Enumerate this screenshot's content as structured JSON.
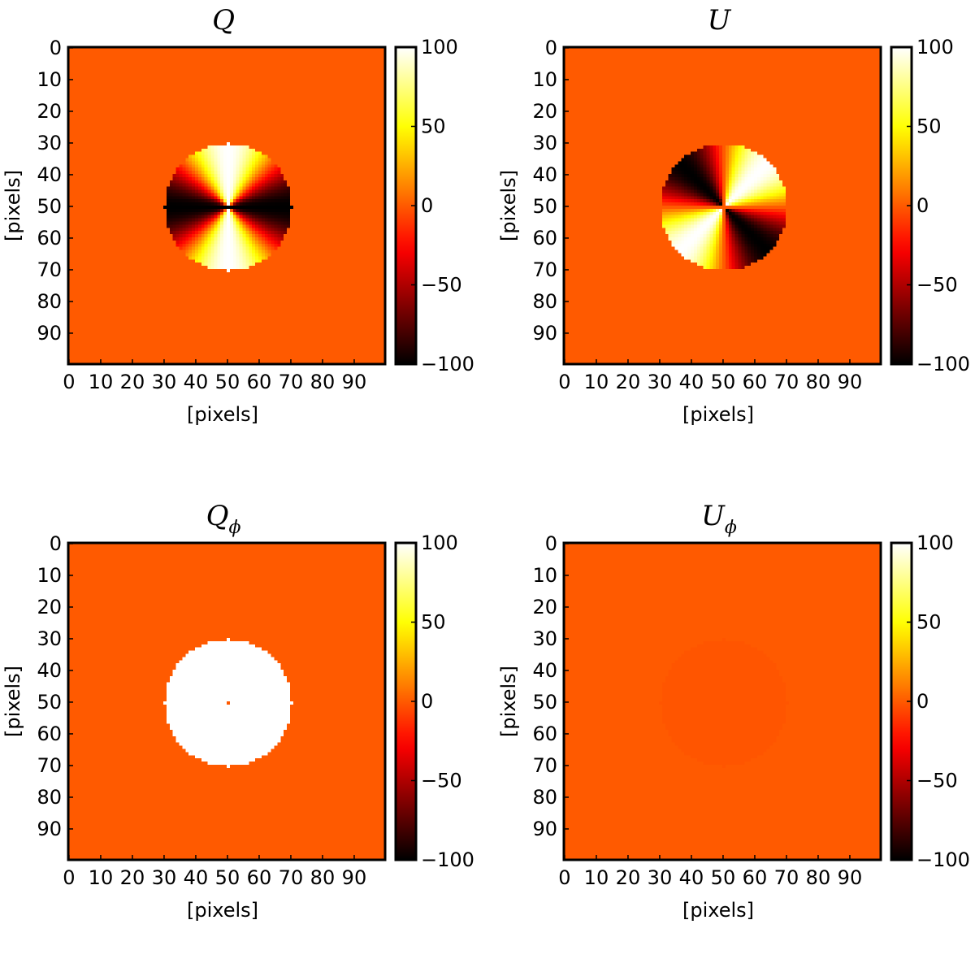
{
  "chart_data": [
    {
      "type": "heatmap",
      "title": "Q",
      "title_subscript": "",
      "pattern": "Q",
      "xlabel": "[pixels]",
      "ylabel": "[pixels]",
      "xlim": [
        0,
        99
      ],
      "ylim": [
        99,
        0
      ],
      "xticks": [
        "0",
        "10",
        "20",
        "30",
        "40",
        "50",
        "60",
        "70",
        "80",
        "90"
      ],
      "yticks": [
        "0",
        "10",
        "20",
        "30",
        "40",
        "50",
        "60",
        "70",
        "80",
        "90"
      ],
      "colorbar": {
        "min": -100,
        "max": 100,
        "ticks": [
          "100",
          "50",
          "0",
          "−50",
          "−100"
        ],
        "colormap": "hot"
      },
      "disk": {
        "center": [
          50,
          50
        ],
        "radius": 20,
        "amplitude": 100
      },
      "background_value": 0
    },
    {
      "type": "heatmap",
      "title": "U",
      "title_subscript": "",
      "pattern": "U",
      "xlabel": "[pixels]",
      "ylabel": "[pixels]",
      "xlim": [
        0,
        99
      ],
      "ylim": [
        99,
        0
      ],
      "xticks": [
        "0",
        "10",
        "20",
        "30",
        "40",
        "50",
        "60",
        "70",
        "80",
        "90"
      ],
      "yticks": [
        "0",
        "10",
        "20",
        "30",
        "40",
        "50",
        "60",
        "70",
        "80",
        "90"
      ],
      "colorbar": {
        "min": -100,
        "max": 100,
        "ticks": [
          "100",
          "50",
          "0",
          "−50",
          "−100"
        ],
        "colormap": "hot"
      },
      "disk": {
        "center": [
          50,
          50
        ],
        "radius": 20,
        "amplitude": 100
      },
      "background_value": 0
    },
    {
      "type": "heatmap",
      "title": "Q",
      "title_subscript": "ϕ",
      "pattern": "Qphi",
      "xlabel": "[pixels]",
      "ylabel": "[pixels]",
      "xlim": [
        0,
        99
      ],
      "ylim": [
        99,
        0
      ],
      "xticks": [
        "0",
        "10",
        "20",
        "30",
        "40",
        "50",
        "60",
        "70",
        "80",
        "90"
      ],
      "yticks": [
        "0",
        "10",
        "20",
        "30",
        "40",
        "50",
        "60",
        "70",
        "80",
        "90"
      ],
      "colorbar": {
        "min": -100,
        "max": 100,
        "ticks": [
          "100",
          "50",
          "0",
          "−50",
          "−100"
        ],
        "colormap": "hot"
      },
      "disk": {
        "center": [
          50,
          50
        ],
        "radius": 20,
        "amplitude": 100
      },
      "background_value": 0
    },
    {
      "type": "heatmap",
      "title": "U",
      "title_subscript": "ϕ",
      "pattern": "Uphi",
      "xlabel": "[pixels]",
      "ylabel": "[pixels]",
      "xlim": [
        0,
        99
      ],
      "ylim": [
        99,
        0
      ],
      "xticks": [
        "0",
        "10",
        "20",
        "30",
        "40",
        "50",
        "60",
        "70",
        "80",
        "90"
      ],
      "yticks": [
        "0",
        "10",
        "20",
        "30",
        "40",
        "50",
        "60",
        "70",
        "80",
        "90"
      ],
      "colorbar": {
        "min": -100,
        "max": 100,
        "ticks": [
          "100",
          "50",
          "0",
          "−50",
          "−100"
        ],
        "colormap": "hot"
      },
      "disk": {
        "center": [
          50,
          50
        ],
        "radius": 20,
        "amplitude": 1.5
      },
      "background_value": 0
    }
  ]
}
